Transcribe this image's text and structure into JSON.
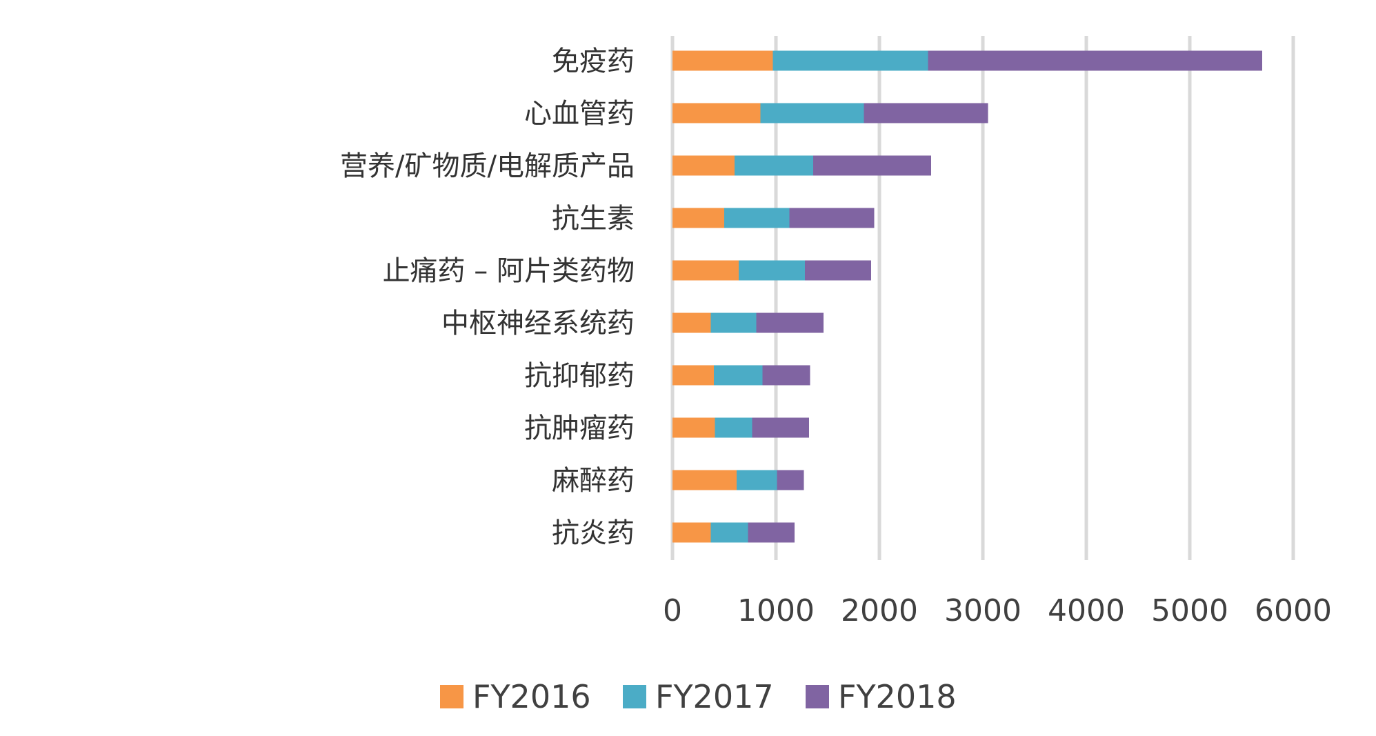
{
  "chart_data": {
    "type": "bar",
    "orientation": "horizontal",
    "stacked": true,
    "categories": [
      "免疫药",
      "心血管药",
      "营养/矿物质/电解质产品",
      "抗生素",
      "止痛药 – 阿片类药物",
      "中枢神经系统药",
      "抗抑郁药",
      "抗肿瘤药",
      "麻醉药",
      "抗炎药"
    ],
    "series": [
      {
        "name": "FY2016",
        "color": "#f79646",
        "values": [
          970,
          850,
          600,
          500,
          640,
          370,
          400,
          410,
          620,
          370
        ]
      },
      {
        "name": "FY2017",
        "color": "#4bacc6",
        "values": [
          1500,
          1000,
          760,
          630,
          640,
          440,
          470,
          360,
          390,
          360
        ]
      },
      {
        "name": "FY2018",
        "color": "#8064a2",
        "values": [
          3230,
          1200,
          1140,
          820,
          640,
          650,
          460,
          550,
          260,
          450
        ]
      }
    ],
    "xlim": [
      0,
      6000
    ],
    "xticks": [
      0,
      1000,
      2000,
      3000,
      4000,
      5000,
      6000
    ],
    "grid": true,
    "legend_position": "bottom"
  }
}
